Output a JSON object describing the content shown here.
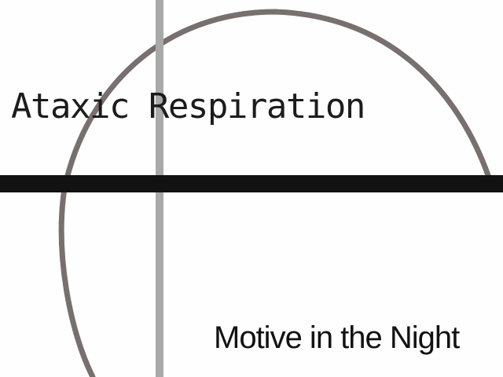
{
  "cover": {
    "band_name": "Ataxic Respiration",
    "album_title": "Motive in the Night"
  },
  "colors": {
    "background": "#fefefe",
    "arc": "#77706f",
    "vertical_line": "#a9a9a9",
    "horizontal_bar": "#121212",
    "text": "#1c1c1c"
  }
}
